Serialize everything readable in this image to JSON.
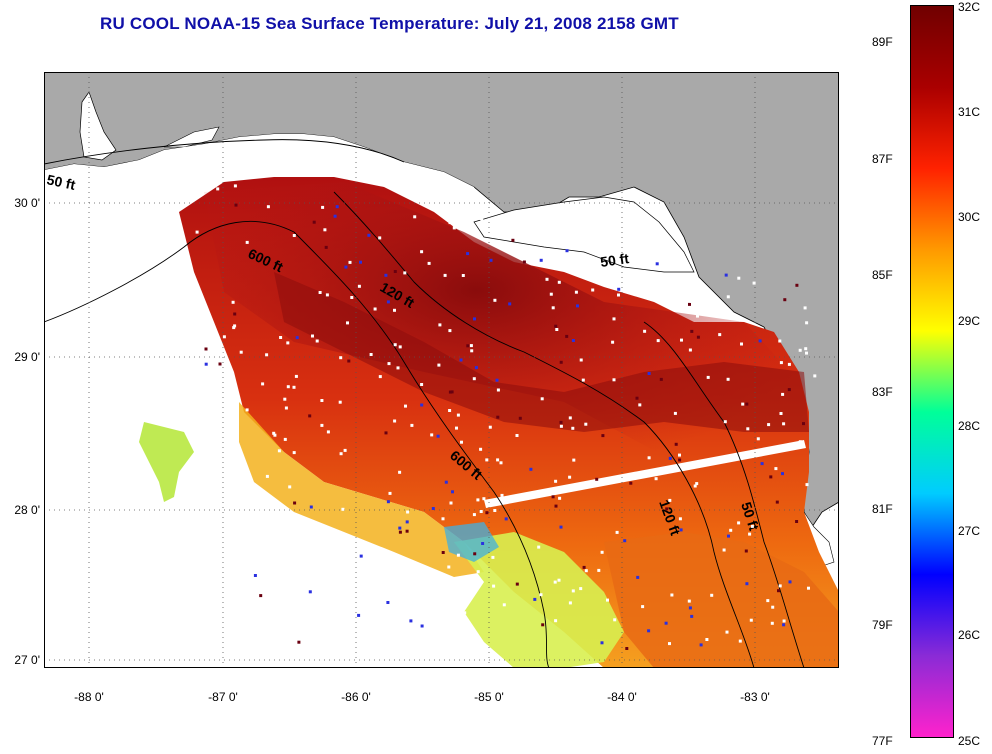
{
  "title": "RU COOL  NOAA-15  Sea Surface Temperature:  July 21, 2008 2158 GMT",
  "map": {
    "lat_labels": [
      "30 0'",
      "29 0'",
      "28 0'",
      "27 0'"
    ],
    "lat_values": [
      30,
      29,
      28,
      27
    ],
    "lon_labels": [
      "-88 0'",
      "-87 0'",
      "-86 0'",
      "-85 0'",
      "-84 0'",
      "-83 0'"
    ],
    "lon_values": [
      -88,
      -87,
      -86,
      -85,
      -84,
      -83
    ],
    "extent": {
      "lon_min": -88.35,
      "lon_max": -82.35,
      "lat_min": 26.97,
      "lat_max": 30.85
    },
    "isobath_labels": [
      {
        "text": "50 ft"
      },
      {
        "text": "600 ft"
      },
      {
        "text": "120 ft"
      },
      {
        "text": "50 ft"
      },
      {
        "text": "600 ft"
      },
      {
        "text": "120 ft"
      },
      {
        "text": "50 ft"
      }
    ],
    "land_color": "#a9a9a9",
    "cloud_color": "#ffffff"
  },
  "colorbar": {
    "f_labels": [
      "89F",
      "87F",
      "85F",
      "83F",
      "81F",
      "79F",
      "77F"
    ],
    "c_labels": [
      "32C",
      "31C",
      "30C",
      "29C",
      "28C",
      "27C",
      "26C",
      "25C"
    ],
    "c_min": 25,
    "c_max": 32,
    "stops": [
      "#ff22cc",
      "#8a2bd6",
      "#0000ff",
      "#00ccff",
      "#00ff99",
      "#ffff00",
      "#ff9900",
      "#ff2200",
      "#aa0000",
      "#700000"
    ]
  }
}
